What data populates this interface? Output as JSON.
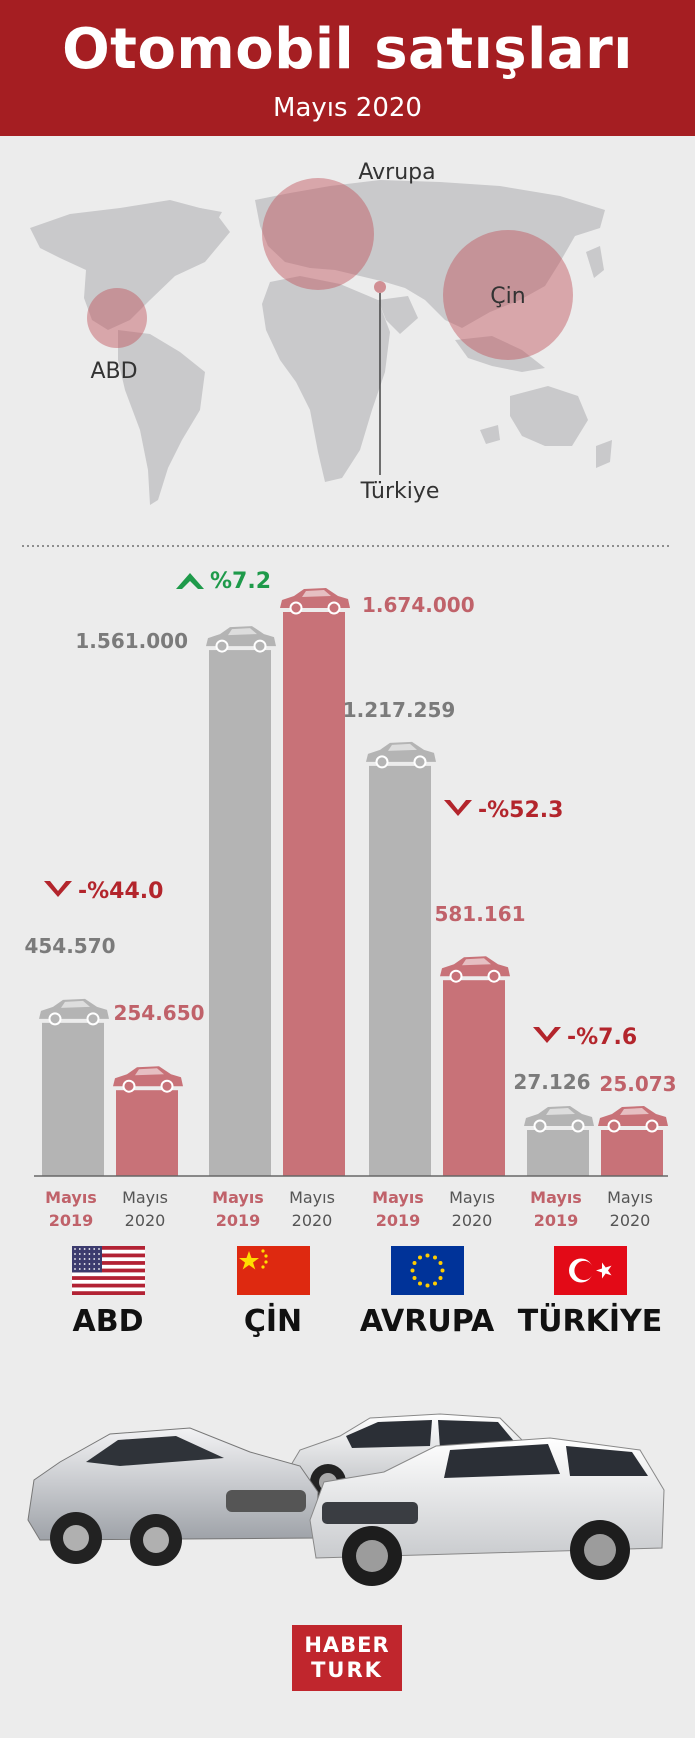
{
  "header": {
    "title": "Otomobil satışları",
    "subtitle": "Mayıs 2020"
  },
  "map": {
    "labels": {
      "europe": "Avrupa",
      "usa": "ABD",
      "china": "Çin",
      "turkey": "Türkiye"
    }
  },
  "colors": {
    "gray_bar": "#b4b4b4",
    "red_bar": "#c87278",
    "header": "#a51e22",
    "up": "#1e9a4a",
    "down": "#b3252c"
  },
  "chart_data": {
    "type": "bar",
    "categories": [
      "ABD",
      "ÇİN",
      "AVRUPA",
      "TÜRKİYE"
    ],
    "series": [
      {
        "name": "Mayıs 2019",
        "values": [
          454570,
          1561000,
          1217259,
          27126
        ],
        "labels": [
          "454.570",
          "1.561.000",
          "1.217.259",
          "27.126"
        ]
      },
      {
        "name": "Mayıs 2020",
        "values": [
          254650,
          1674000,
          581161,
          25073
        ],
        "labels": [
          "254.650",
          "1.674.000",
          "581.161",
          "25.073"
        ]
      }
    ],
    "changes": [
      {
        "label": "-%44.0",
        "direction": "down"
      },
      {
        "label": "%7.2",
        "direction": "up"
      },
      {
        "label": "-%52.3",
        "direction": "down"
      },
      {
        "label": "-%7.6",
        "direction": "down"
      }
    ],
    "axis_labels": [
      {
        "month": "Mayıs",
        "year": "2019"
      },
      {
        "month": "Mayıs",
        "year": "2020"
      }
    ]
  },
  "countries": [
    {
      "name": "ABD",
      "flag": "usa-flag"
    },
    {
      "name": "ÇİN",
      "flag": "china-flag"
    },
    {
      "name": "AVRUPA",
      "flag": "eu-flag"
    },
    {
      "name": "TÜRKİYE",
      "flag": "turkey-flag"
    }
  ],
  "logo": {
    "line1": "HABER",
    "line2": "TURK"
  }
}
